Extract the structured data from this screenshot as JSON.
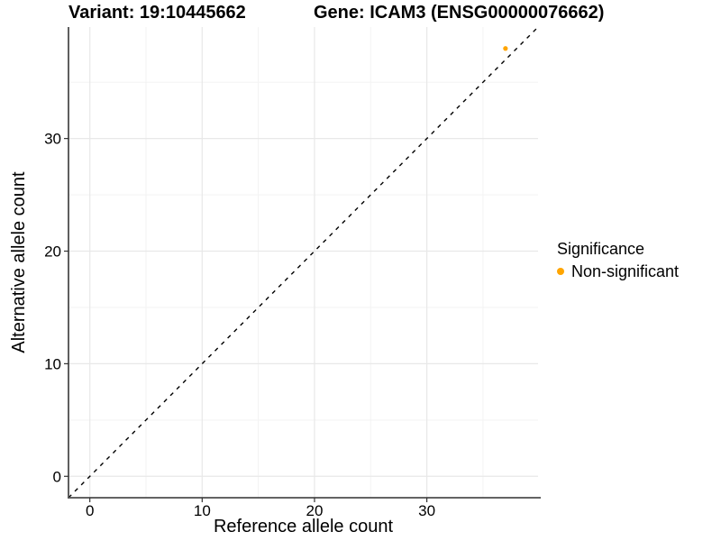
{
  "titles": {
    "variant": "Variant: 19:10445662",
    "gene": "Gene: ICAM3 (ENSG00000076662)"
  },
  "chart_data": {
    "type": "scatter",
    "xlabel": "Reference allele count",
    "ylabel": "Alternative allele count",
    "xlim": [
      -1.9,
      39.9
    ],
    "ylim": [
      -1.9,
      39.9
    ],
    "x_ticks": [
      0,
      10,
      20,
      30
    ],
    "y_ticks": [
      0,
      10,
      20,
      30
    ],
    "x_minor_ticks": [
      5,
      15,
      25,
      35
    ],
    "y_minor_ticks": [
      5,
      15,
      25,
      35
    ],
    "grid": "major+minor",
    "identity_line": {
      "style": "dashed",
      "slope": 1,
      "intercept": 0,
      "color": "#000000"
    },
    "series": [
      {
        "name": "Non-significant",
        "color": "#FFA500",
        "points": [
          {
            "x": 37,
            "y": 38
          }
        ]
      }
    ],
    "legend_position": "right"
  },
  "legend": {
    "title": "Significance",
    "items": [
      {
        "label": "Non-significant",
        "color": "#FFA500",
        "marker": "circle"
      }
    ]
  },
  "colors": {
    "axis_line": "#4d4d4d",
    "tick_mark": "#333333",
    "grid_major": "#e8e8e8",
    "grid_minor": "#f3f3f3",
    "text": "#000000"
  }
}
